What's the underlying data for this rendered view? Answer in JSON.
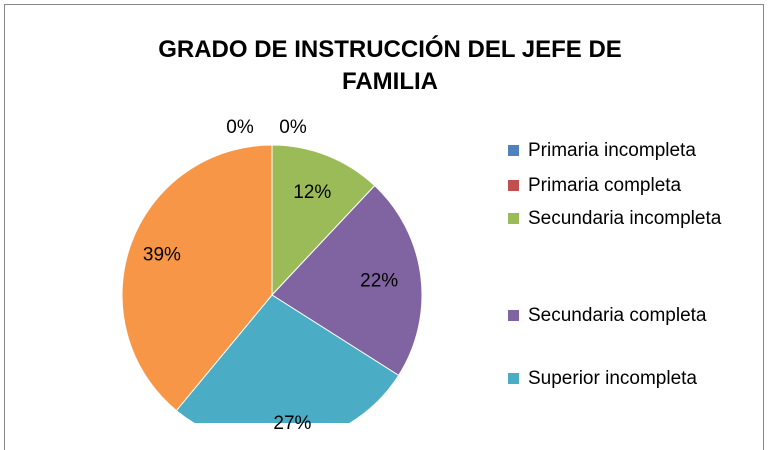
{
  "chart_data": {
    "type": "pie",
    "title": "GRADO DE INSTRUCCIÓN DEL JEFE DE FAMILIA",
    "categories": [
      "Primaria incompleta",
      "Primaria completa",
      "Secundaria incompleta",
      "Secundaria completa",
      "Superior incompleta",
      null
    ],
    "values": [
      0,
      0,
      12,
      22,
      27,
      39
    ],
    "value_labels": [
      "0%",
      "0%",
      "12%",
      "22%",
      "27%",
      "39%"
    ],
    "colors": [
      "#4f81bd",
      "#c0504d",
      "#9bbb59",
      "#8064a2",
      "#4bacc6",
      "#f79646"
    ],
    "legend": "right"
  }
}
